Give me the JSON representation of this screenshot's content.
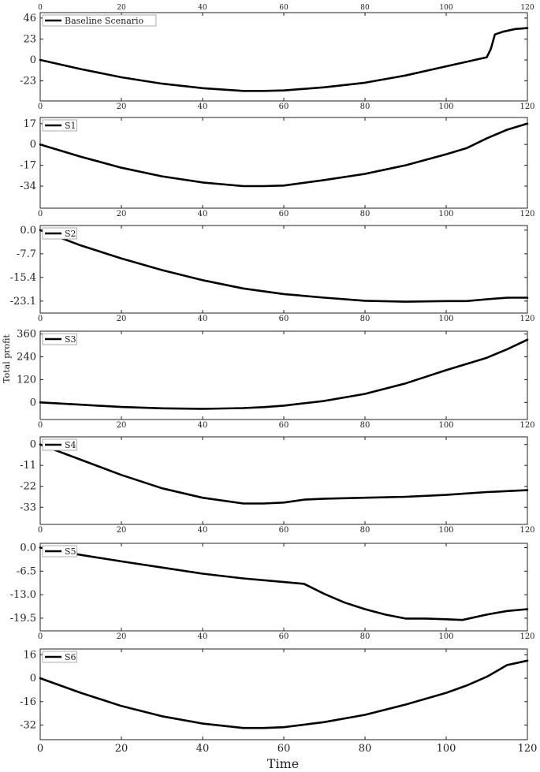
{
  "figure": {
    "ylabel": "Total profit",
    "xlabel": "Time"
  },
  "chart_data": [
    {
      "type": "line",
      "legend": "Baseline Scenario",
      "xlim": [
        0,
        120
      ],
      "ylim": [
        -45,
        52
      ],
      "x_ticks": [
        0,
        20,
        40,
        60,
        80,
        100,
        120
      ],
      "y_ticks": [
        46,
        23,
        0,
        -23
      ],
      "y_tick_labels": [
        "46",
        "23",
        "0",
        "-23"
      ],
      "series": [
        {
          "values": [
            [
              0,
              0
            ],
            [
              10,
              -10
            ],
            [
              20,
              -19
            ],
            [
              30,
              -26
            ],
            [
              40,
              -31
            ],
            [
              50,
              -34
            ],
            [
              55,
              -34
            ],
            [
              60,
              -33.5
            ],
            [
              70,
              -30
            ],
            [
              80,
              -25
            ],
            [
              90,
              -17
            ],
            [
              100,
              -7
            ],
            [
              105,
              -2
            ],
            [
              110,
              3
            ],
            [
              111,
              12
            ],
            [
              112,
              28
            ],
            [
              114,
              31
            ],
            [
              117,
              34
            ],
            [
              120,
              35
            ]
          ]
        }
      ]
    },
    {
      "type": "line",
      "legend": "S1",
      "xlim": [
        0,
        120
      ],
      "ylim": [
        -52,
        22
      ],
      "x_ticks": [
        0,
        20,
        40,
        60,
        80,
        100,
        120
      ],
      "y_ticks": [
        17,
        0,
        -17,
        -34
      ],
      "y_tick_labels": [
        "17",
        "0",
        "-17",
        "-34"
      ],
      "series": [
        {
          "values": [
            [
              0,
              0
            ],
            [
              10,
              -10
            ],
            [
              20,
              -19
            ],
            [
              30,
              -26
            ],
            [
              40,
              -31
            ],
            [
              50,
              -34
            ],
            [
              55,
              -34
            ],
            [
              60,
              -33.5
            ],
            [
              70,
              -29
            ],
            [
              80,
              -24
            ],
            [
              90,
              -17
            ],
            [
              100,
              -8
            ],
            [
              105,
              -3
            ],
            [
              110,
              5
            ],
            [
              115,
              12
            ],
            [
              120,
              17
            ]
          ]
        }
      ]
    },
    {
      "type": "line",
      "legend": "S2",
      "xlim": [
        0,
        120
      ],
      "ylim": [
        -27,
        1.5
      ],
      "x_ticks": [
        0,
        20,
        40,
        60,
        80,
        100,
        120
      ],
      "y_ticks": [
        0.0,
        -7.7,
        -15.4,
        -23.1
      ],
      "y_tick_labels": [
        "0.0",
        "-7.7",
        "-15.4",
        "-23.1"
      ],
      "series": [
        {
          "values": [
            [
              0,
              0
            ],
            [
              10,
              -5
            ],
            [
              20,
              -9.2
            ],
            [
              30,
              -13
            ],
            [
              40,
              -16.3
            ],
            [
              50,
              -19
            ],
            [
              60,
              -20.8
            ],
            [
              70,
              -22
            ],
            [
              80,
              -23
            ],
            [
              90,
              -23.3
            ],
            [
              100,
              -23.1
            ],
            [
              105,
              -23.1
            ],
            [
              110,
              -22.5
            ],
            [
              115,
              -22
            ],
            [
              120,
              -22
            ]
          ]
        }
      ]
    },
    {
      "type": "line",
      "legend": "S3",
      "xlim": [
        0,
        120
      ],
      "ylim": [
        -90,
        375
      ],
      "x_ticks": [
        0,
        20,
        40,
        60,
        80,
        100,
        120
      ],
      "y_ticks": [
        360,
        240,
        120,
        0
      ],
      "y_tick_labels": [
        "360",
        "240",
        "120",
        "0"
      ],
      "series": [
        {
          "values": [
            [
              0,
              0
            ],
            [
              10,
              -12
            ],
            [
              20,
              -24
            ],
            [
              30,
              -31
            ],
            [
              40,
              -34
            ],
            [
              50,
              -30
            ],
            [
              55,
              -25
            ],
            [
              60,
              -17
            ],
            [
              70,
              8
            ],
            [
              80,
              45
            ],
            [
              90,
              100
            ],
            [
              100,
              170
            ],
            [
              110,
              235
            ],
            [
              115,
              280
            ],
            [
              120,
              330
            ]
          ]
        }
      ]
    },
    {
      "type": "line",
      "legend": "S4",
      "xlim": [
        0,
        120
      ],
      "ylim": [
        -42,
        4
      ],
      "x_ticks": [
        0,
        20,
        40,
        60,
        80,
        100,
        120
      ],
      "y_ticks": [
        0,
        -11,
        -22,
        -33
      ],
      "y_tick_labels": [
        "0",
        "-11",
        "-22",
        "-33"
      ],
      "series": [
        {
          "values": [
            [
              0,
              0
            ],
            [
              10,
              -8
            ],
            [
              20,
              -16
            ],
            [
              30,
              -23
            ],
            [
              40,
              -28
            ],
            [
              50,
              -31
            ],
            [
              55,
              -31
            ],
            [
              60,
              -30.5
            ],
            [
              65,
              -29
            ],
            [
              70,
              -28.5
            ],
            [
              80,
              -28
            ],
            [
              90,
              -27.5
            ],
            [
              100,
              -26.5
            ],
            [
              110,
              -25
            ],
            [
              120,
              -24
            ]
          ]
        }
      ]
    },
    {
      "type": "line",
      "legend": "S5",
      "xlim": [
        0,
        120
      ],
      "ylim": [
        -23,
        1.2
      ],
      "x_ticks": [
        0,
        20,
        40,
        60,
        80,
        100,
        120
      ],
      "y_ticks": [
        0.0,
        -6.5,
        -13.0,
        -19.5
      ],
      "y_tick_labels": [
        "0.0",
        "-6.5",
        "-13.0",
        "-19.5"
      ],
      "series": [
        {
          "values": [
            [
              0,
              0
            ],
            [
              10,
              -2
            ],
            [
              20,
              -3.8
            ],
            [
              30,
              -5.5
            ],
            [
              40,
              -7.2
            ],
            [
              50,
              -8.5
            ],
            [
              60,
              -9.5
            ],
            [
              65,
              -10
            ],
            [
              70,
              -12.8
            ],
            [
              75,
              -15.2
            ],
            [
              80,
              -17
            ],
            [
              85,
              -18.5
            ],
            [
              90,
              -19.6
            ],
            [
              95,
              -19.6
            ],
            [
              100,
              -19.8
            ],
            [
              104,
              -20
            ],
            [
              110,
              -18.5
            ],
            [
              115,
              -17.5
            ],
            [
              120,
              -17
            ]
          ]
        }
      ]
    },
    {
      "type": "line",
      "legend": "S6",
      "xlim": [
        0,
        120
      ],
      "ylim": [
        -42,
        20
      ],
      "x_ticks": [
        0,
        20,
        40,
        60,
        80,
        100,
        120
      ],
      "y_ticks": [
        16,
        0,
        -16,
        -32
      ],
      "y_tick_labels": [
        "16",
        "0",
        "-16",
        "-32"
      ],
      "series": [
        {
          "values": [
            [
              0,
              0
            ],
            [
              10,
              -10
            ],
            [
              20,
              -19
            ],
            [
              30,
              -26
            ],
            [
              40,
              -31
            ],
            [
              50,
              -34
            ],
            [
              55,
              -34
            ],
            [
              60,
              -33.5
            ],
            [
              70,
              -30
            ],
            [
              80,
              -25
            ],
            [
              90,
              -18
            ],
            [
              100,
              -10
            ],
            [
              105,
              -5
            ],
            [
              110,
              1
            ],
            [
              115,
              9
            ],
            [
              120,
              12
            ]
          ]
        }
      ]
    }
  ]
}
